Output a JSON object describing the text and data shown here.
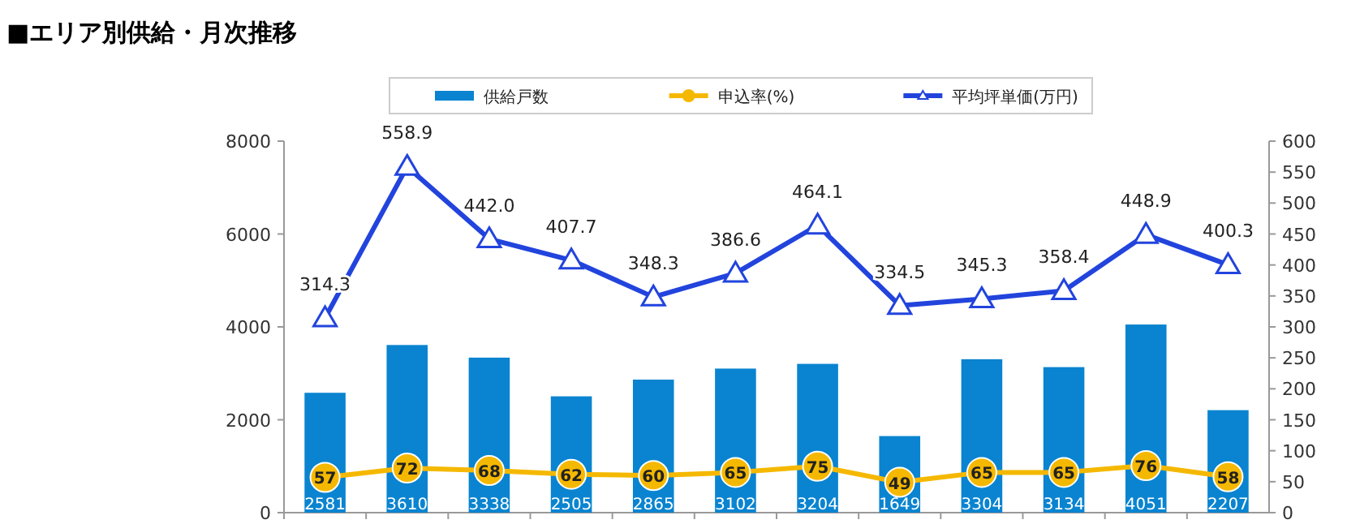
{
  "chart_data": {
    "type": "bar",
    "title": "■エリア別供給・月次推移",
    "categories": [
      null,
      null,
      null,
      null,
      null,
      null,
      null,
      null,
      null,
      null,
      null,
      null
    ],
    "series": [
      {
        "name": "供給戸数",
        "color": "#0a84d0",
        "values": [
          2581,
          3610,
          3338,
          2505,
          2865,
          3102,
          3204,
          1649,
          3304,
          3134,
          4051,
          2207
        ]
      },
      {
        "name": "申込率(%)",
        "type": "line",
        "axis": "y2",
        "marker": "circle",
        "color": "#f5b800",
        "values": [
          57,
          72,
          68,
          62,
          60,
          65,
          75,
          49,
          65,
          65,
          76,
          58
        ]
      },
      {
        "name": "平均坪単価(万円)",
        "type": "line",
        "axis": "y2",
        "marker": "triangle",
        "color": "#2244dd",
        "values": [
          314.3,
          558.9,
          442.0,
          407.7,
          348.3,
          386.6,
          464.1,
          334.5,
          345.3,
          358.4,
          448.9,
          400.3
        ],
        "value_labels": [
          "314.3",
          "558.9",
          "442.0",
          "407.7",
          "348.3",
          "386.6",
          "464.1",
          "334.5",
          "345.3",
          "358.4",
          "448.9",
          "400.3"
        ]
      }
    ],
    "ylim": [
      0,
      8000
    ],
    "yticks": [
      0,
      2000,
      4000,
      6000,
      8000
    ],
    "y2lim": [
      0,
      600
    ],
    "y2ticks": [
      0,
      50,
      100,
      150,
      200,
      250,
      300,
      350,
      400,
      450,
      500,
      550,
      600
    ],
    "data_labels": true,
    "legend": "top",
    "grid": false
  }
}
